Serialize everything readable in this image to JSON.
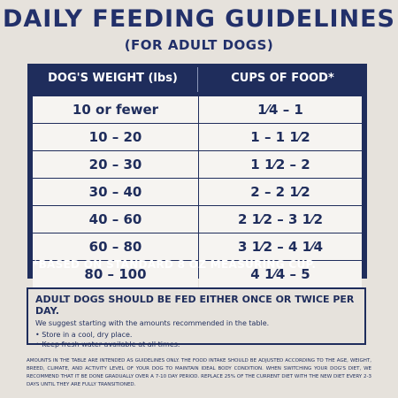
{
  "title": "DAILY FEEDING GUIDELINES",
  "subtitle": "(FOR ADULT DOGS)",
  "table": {
    "headers": [
      "DOG'S WEIGHT (lbs)",
      "CUPS OF FOOD*"
    ],
    "rows": [
      [
        "10 or fewer",
        "1⁄4 – 1"
      ],
      [
        "10 – 20",
        "1 – 1 1⁄2"
      ],
      [
        "20 – 30",
        "1 1⁄2 – 2"
      ],
      [
        "30 – 40",
        "2 – 2 1⁄2"
      ],
      [
        "40 – 60",
        "2 1⁄2 – 3 1⁄2"
      ],
      [
        "60 – 80",
        "3 1⁄2 – 4 1⁄4"
      ],
      [
        "80 – 100",
        "4 1⁄4 – 5"
      ]
    ],
    "footnote": "*BASED ON STANDARD 8 OZ MEASURING CUP."
  },
  "note": {
    "title": "ADULT DOGS SHOULD BE FED EITHER ONCE OR TWICE PER DAY.",
    "subtitle": "We suggest starting with the amounts recommended in the table.",
    "bullets": [
      "Store in a cool, dry place.",
      "Keep fresh water available at all times."
    ]
  },
  "fine_print": "AMOUNTS IN THE TABLE ARE INTENDED AS GUIDELINES ONLY. THE FOOD INTAKE SHOULD BE ADJUSTED ACCORDING TO THE AGE, WEIGHT, BREED, CLIMATE, AND ACTIVITY LEVEL OF YOUR DOG TO MAINTAIN IDEAL BODY CONDITION. WHEN SWITCHING YOUR DOG'S DIET, WE RECOMMEND THAT IT BE DONE GRADUALLY OVER A 7-10 DAY PERIOD. REPLACE 25% OF THE CURRENT DIET WITH THE NEW DIET EVERY 2-3 DAYS UNTIL THEY ARE FULLY TRANSITIONED.",
  "colors": {
    "navy": "#1f2d5c",
    "background": "#e6e2dc",
    "cell": "#f6f4f1"
  }
}
